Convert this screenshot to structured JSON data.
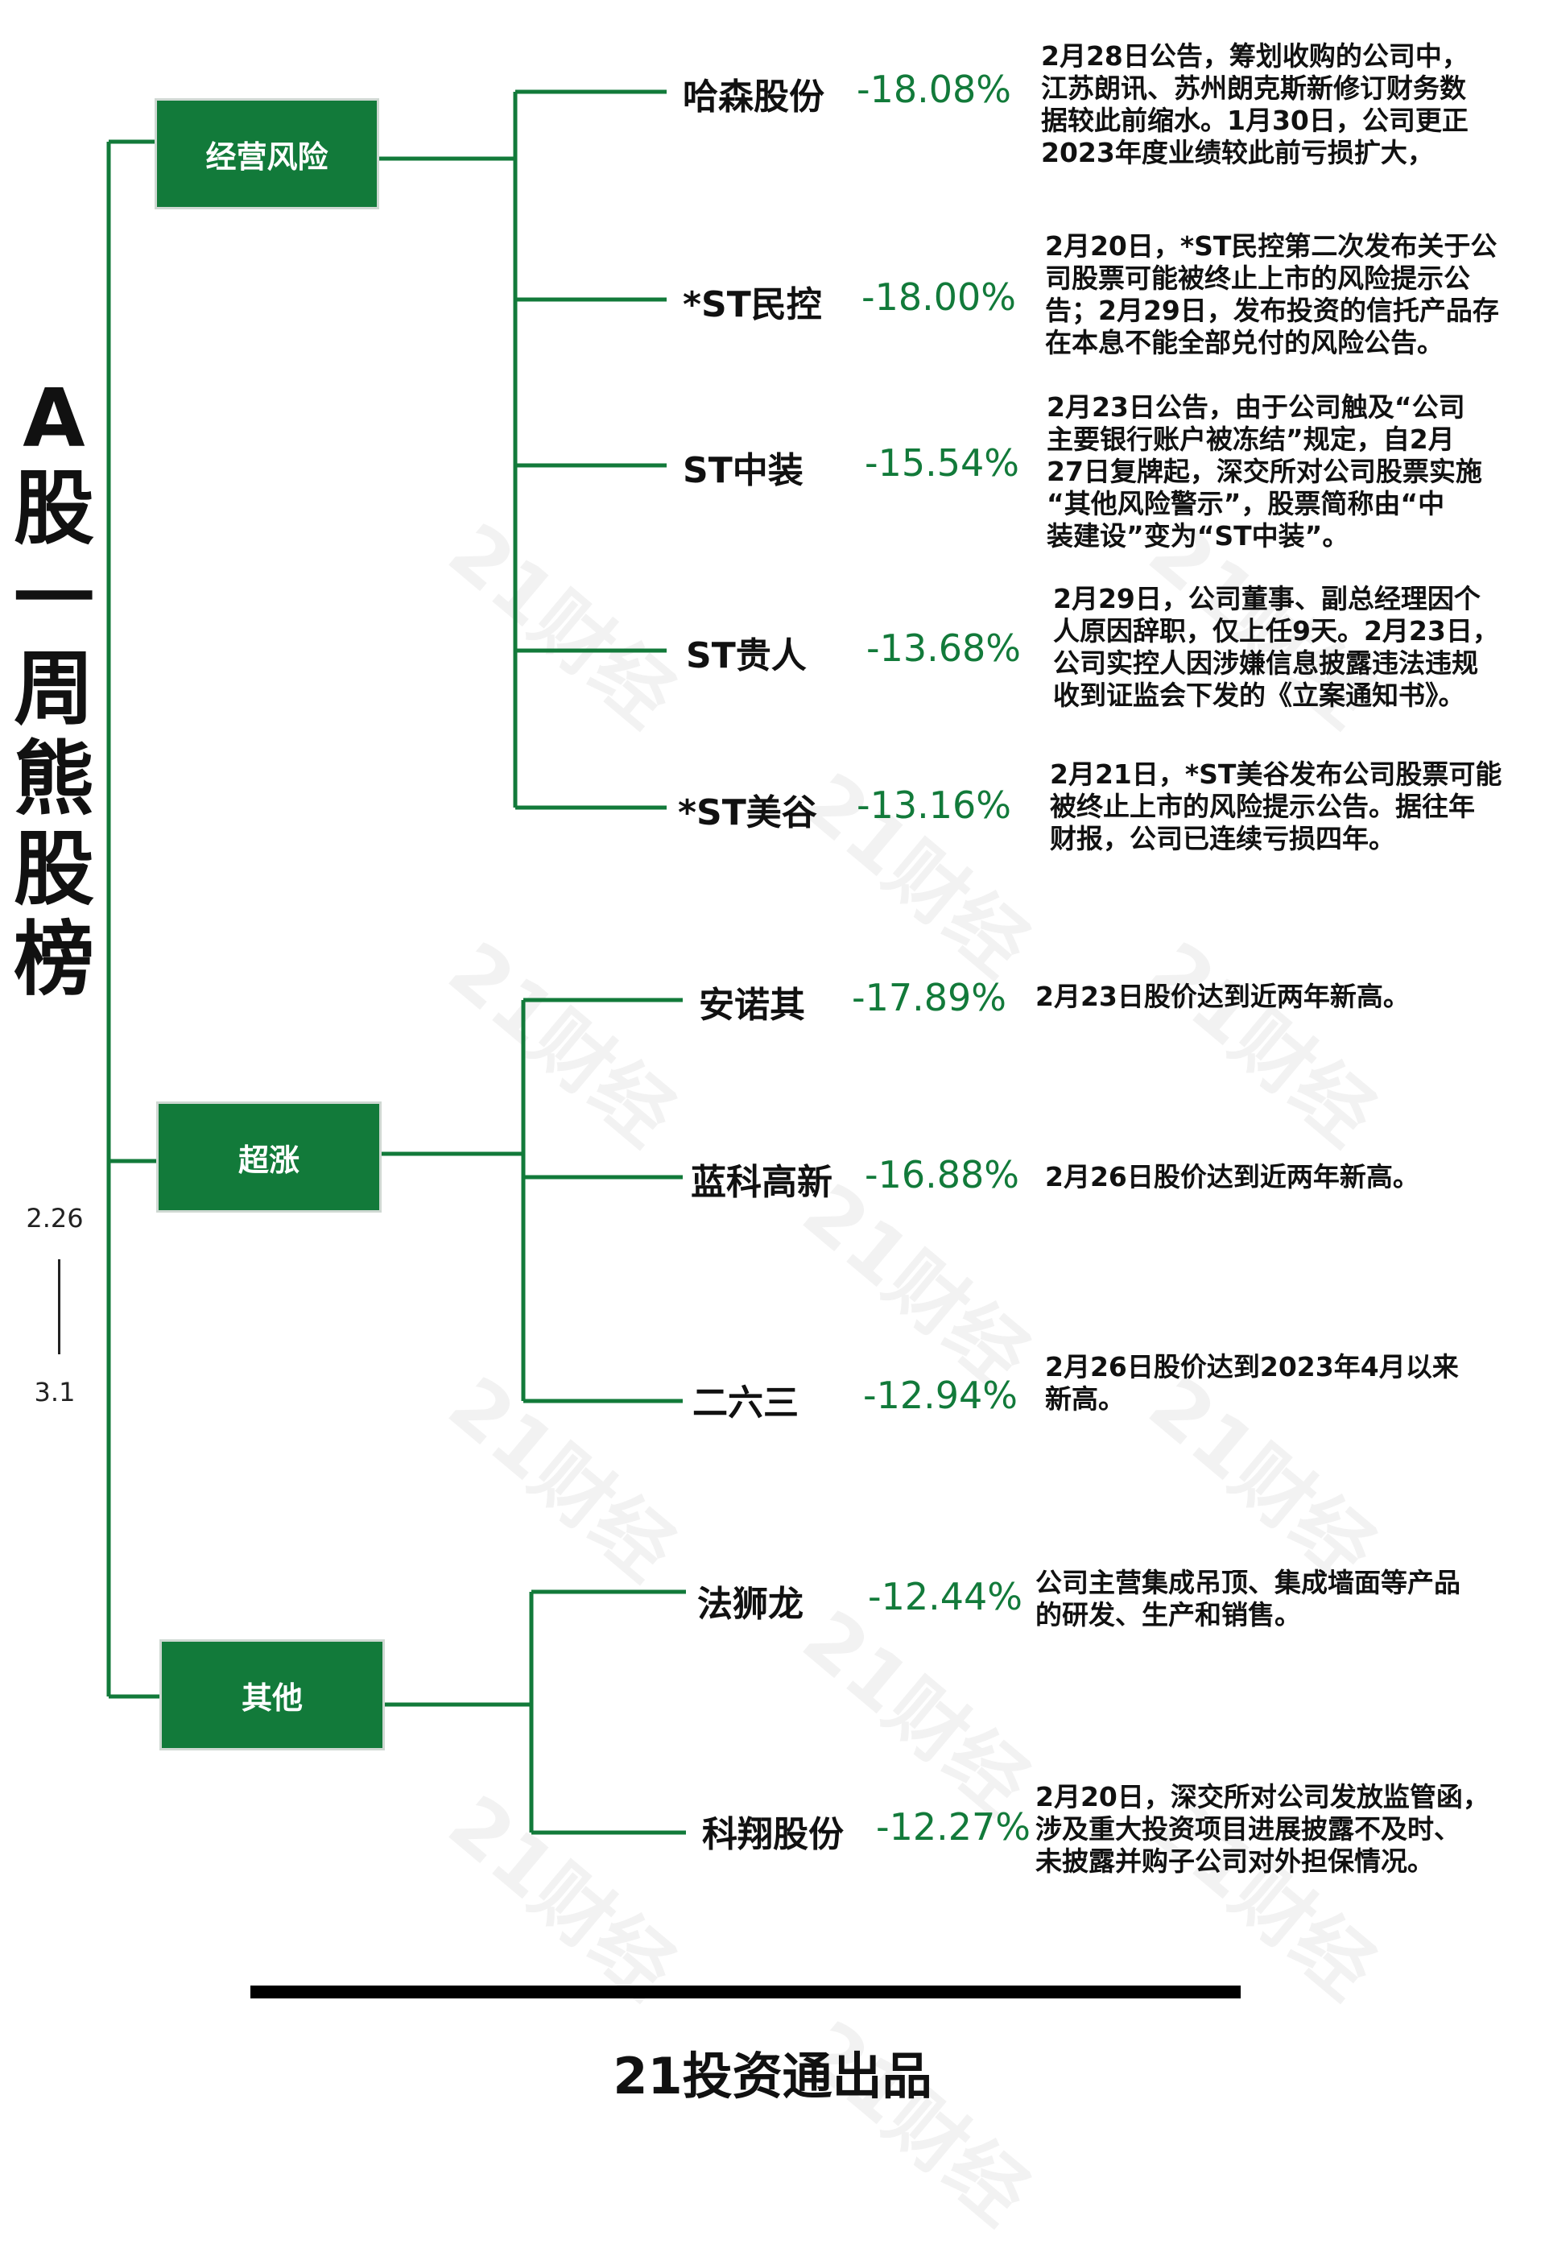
{
  "title": [
    "A",
    "股",
    "一",
    "周",
    "熊",
    "股",
    "榜"
  ],
  "date_range": {
    "start": "2.26",
    "end": "3.1"
  },
  "colors": {
    "accent": "#127a3a",
    "line": "#127a3a",
    "text": "#111111"
  },
  "categories": [
    {
      "label": "经营风险",
      "stocks": [
        {
          "name": "哈森股份",
          "change": "-18.08%",
          "note": [
            "2月28日公告，筹划收购的公司中，",
            "江苏朗讯、苏州朗克斯新修订财务数",
            "据较此前缩水。1月30日，公司更正",
            "2023年度业绩较此前亏损扩大，"
          ]
        },
        {
          "name": "*ST民控",
          "change": "-18.00%",
          "note": [
            "2月20日，*ST民控第二次发布关于公",
            "司股票可能被终止上市的风险提示公",
            "告；2月29日，发布投资的信托产品存",
            "在本息不能全部兑付的风险公告。"
          ]
        },
        {
          "name": "ST中装",
          "change": "-15.54%",
          "note": [
            "2月23日公告，由于公司触及“公司",
            "主要银行账户被冻结”规定，自2月",
            "27日复牌起，深交所对公司股票实施",
            "“其他风险警示”，股票简称由“中",
            "装建设”变为“ST中装”。"
          ]
        },
        {
          "name": "ST贵人",
          "change": "-13.68%",
          "note": [
            "2月29日，公司董事、副总经理因个",
            "人原因辞职，仅上任9天。2月23日，",
            "公司实控人因涉嫌信息披露违法违规",
            "收到证监会下发的《立案通知书》。"
          ]
        },
        {
          "name": "*ST美谷",
          "change": "-13.16%",
          "note": [
            "2月21日，*ST美谷发布公司股票可能",
            "被终止上市的风险提示公告。据往年",
            "财报，公司已连续亏损四年。"
          ]
        }
      ]
    },
    {
      "label": "超涨",
      "stocks": [
        {
          "name": "安诺其",
          "change": "-17.89%",
          "note": [
            "2月23日股价达到近两年新高。"
          ]
        },
        {
          "name": "蓝科高新",
          "change": "-16.88%",
          "note": [
            "2月26日股价达到近两年新高。"
          ]
        },
        {
          "name": "二六三",
          "change": "-12.94%",
          "note": [
            "2月26日股价达到2023年4月以来",
            "新高。"
          ]
        }
      ]
    },
    {
      "label": "其他",
      "stocks": [
        {
          "name": "法狮龙",
          "change": "-12.44%",
          "note": [
            "公司主营集成吊顶、集成墙面等产品",
            "的研发、生产和销售。"
          ]
        },
        {
          "name": "科翔股份",
          "change": "-12.27%",
          "note": [
            "2月20日，深交所对公司发放监管函，",
            "涉及重大投资项目进展披露不及时、",
            "未披露并购子公司对外担保情况。"
          ]
        }
      ]
    }
  ],
  "watermark": "21财经",
  "footer": "21投资通出品"
}
